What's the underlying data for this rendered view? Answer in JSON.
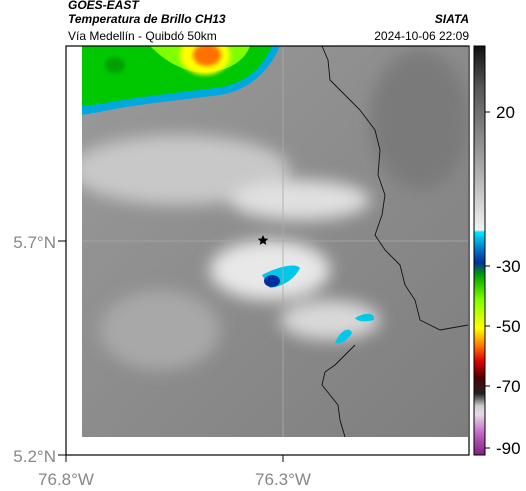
{
  "header": {
    "title": "GOES-EAST",
    "subtitle": "Temperatura de Brillo CH13",
    "location": "Vía Medellín - Quibdó 50km",
    "source": "SIATA",
    "datetime": "2024-10-06 22:09"
  },
  "map": {
    "lat_ticks": [
      "5.7°N",
      "5.2°N"
    ],
    "lon_ticks": [
      "76.8°W",
      "76.3°W"
    ]
  },
  "colorbar": {
    "ticks": [
      "20",
      "-30",
      "-50",
      "-70",
      "-90"
    ]
  }
}
